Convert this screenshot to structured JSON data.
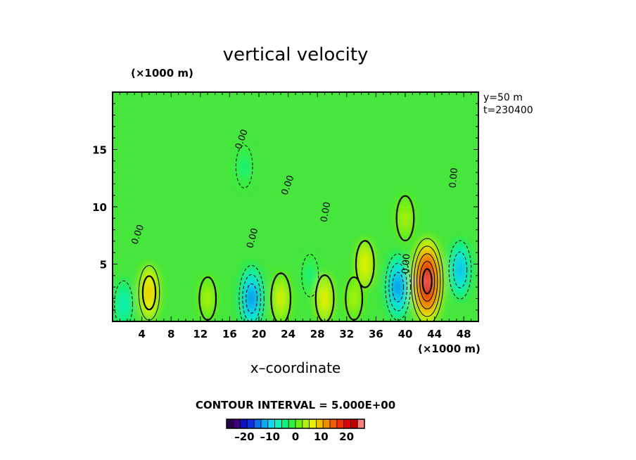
{
  "chart_data": {
    "type": "heatmap",
    "title": "vertical velocity",
    "x_unit_label": "(×1000 m)",
    "y_unit_label": "(×1000 m)",
    "xlabel": "x–coordinate",
    "ylabel": "",
    "x_ticks": [
      "4",
      "8",
      "12",
      "16",
      "20",
      "24",
      "28",
      "32",
      "36",
      "40",
      "44",
      "48"
    ],
    "y_ticks": [
      "5",
      "10",
      "15"
    ],
    "xlim": [
      0,
      50
    ],
    "ylim": [
      0,
      20
    ],
    "annotation_y": "y=50 m",
    "annotation_t": "t=230400",
    "contour_interval_text": "CONTOUR INTERVAL = 5.000E+00",
    "zero_contour_label": "0.00",
    "colorbar": {
      "ticks": [
        "–20",
        "–10",
        "0",
        "10",
        "20"
      ],
      "tick_values": [
        -20,
        -10,
        0,
        10,
        20
      ],
      "range": [
        -27,
        27
      ],
      "colors": [
        "#2a004a",
        "#3a0080",
        "#1010c0",
        "#1030e0",
        "#1070f0",
        "#10a8f0",
        "#10d8f0",
        "#10f0c0",
        "#10f080",
        "#30f040",
        "#70f010",
        "#b0f010",
        "#e8f000",
        "#f0c000",
        "#f09000",
        "#f06000",
        "#f03000",
        "#e00000",
        "#c00000",
        "#ff8080"
      ]
    },
    "background_color": "#46e63c",
    "features": [
      {
        "x": 43,
        "y": 3.5,
        "value": 26
      },
      {
        "x": 39,
        "y": 3,
        "value": -16
      },
      {
        "x": 19,
        "y": 2,
        "value": -16
      },
      {
        "x": 47.5,
        "y": 4.5,
        "value": -12
      },
      {
        "x": 5,
        "y": 2.5,
        "value": 10
      },
      {
        "x": 23,
        "y": 2,
        "value": 8
      },
      {
        "x": 29,
        "y": 2,
        "value": 6
      },
      {
        "x": 34.5,
        "y": 5,
        "value": 6
      },
      {
        "x": 1.5,
        "y": 1.5,
        "value": -6
      },
      {
        "x": 27,
        "y": 4,
        "value": -4
      },
      {
        "x": 18,
        "y": 13.5,
        "value": -4
      },
      {
        "x": 40,
        "y": 9,
        "value": 5
      },
      {
        "x": 13,
        "y": 2,
        "value": 4
      },
      {
        "x": 33,
        "y": 2,
        "value": 4
      }
    ]
  }
}
